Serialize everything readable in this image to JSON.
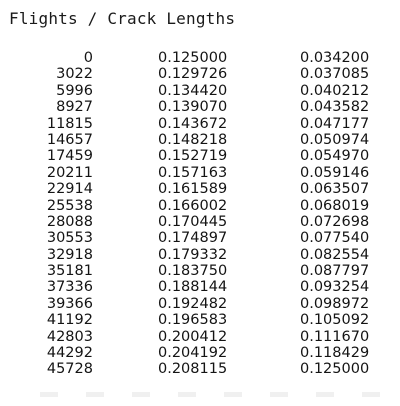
{
  "title": "Flights / Crack Lengths",
  "table": {
    "rows": [
      [
        "0",
        "0.125000",
        "0.034200"
      ],
      [
        "3022",
        "0.129726",
        "0.037085"
      ],
      [
        "5996",
        "0.134420",
        "0.040212"
      ],
      [
        "8927",
        "0.139070",
        "0.043582"
      ],
      [
        "11815",
        "0.143672",
        "0.047177"
      ],
      [
        "14657",
        "0.148218",
        "0.050974"
      ],
      [
        "17459",
        "0.152719",
        "0.054970"
      ],
      [
        "20211",
        "0.157163",
        "0.059146"
      ],
      [
        "22914",
        "0.161589",
        "0.063507"
      ],
      [
        "25538",
        "0.166002",
        "0.068019"
      ],
      [
        "28088",
        "0.170445",
        "0.072698"
      ],
      [
        "30553",
        "0.174897",
        "0.077540"
      ],
      [
        "32918",
        "0.179332",
        "0.082554"
      ],
      [
        "35181",
        "0.183750",
        "0.087797"
      ],
      [
        "37336",
        "0.188144",
        "0.093254"
      ],
      [
        "39366",
        "0.192482",
        "0.098972"
      ],
      [
        "41192",
        "0.196583",
        "0.105092"
      ],
      [
        "42803",
        "0.200412",
        "0.111670"
      ],
      [
        "44292",
        "0.204192",
        "0.118429"
      ],
      [
        "45728",
        "0.208115",
        "0.125000"
      ]
    ]
  }
}
